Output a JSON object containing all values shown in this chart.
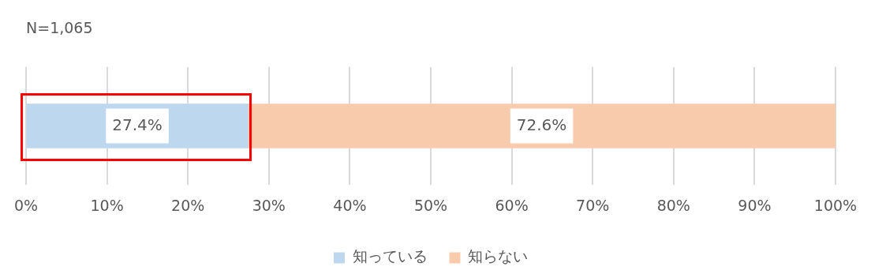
{
  "chart_data": {
    "type": "bar",
    "orientation": "horizontal",
    "stacked": true,
    "title": "N=1,065",
    "categories": [
      null
    ],
    "series": [
      {
        "name": "知っている",
        "color": "#bdd7ee",
        "values": [
          27.4
        ],
        "value_labels": [
          "27.4%"
        ]
      },
      {
        "name": "知らない",
        "color": "#f8cbad",
        "values": [
          72.6
        ],
        "value_labels": [
          "72.6%"
        ]
      }
    ],
    "xlim": [
      0,
      100
    ],
    "xticks": [
      {
        "value": 0,
        "label": "0%"
      },
      {
        "value": 10,
        "label": "10%"
      },
      {
        "value": 20,
        "label": "20%"
      },
      {
        "value": 30,
        "label": "30%"
      },
      {
        "value": 40,
        "label": "40%"
      },
      {
        "value": 50,
        "label": "50%"
      },
      {
        "value": 60,
        "label": "60%"
      },
      {
        "value": 70,
        "label": "70%"
      },
      {
        "value": 80,
        "label": "80%"
      },
      {
        "value": 90,
        "label": "90%"
      },
      {
        "value": 100,
        "label": "100%"
      }
    ],
    "grid": "x",
    "legend": "bottom"
  }
}
